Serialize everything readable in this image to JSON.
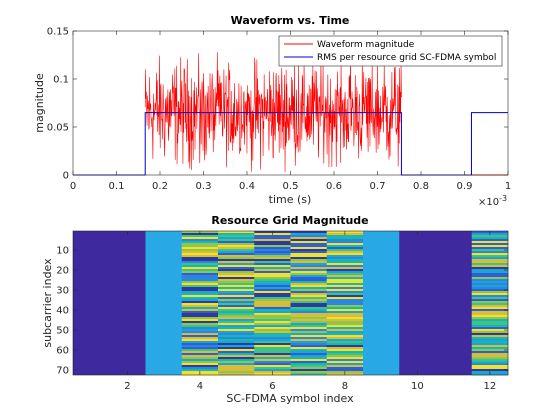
{
  "chart_data": [
    {
      "type": "line",
      "title": "Waveform vs. Time",
      "xlabel": "time (s)",
      "ylabel": "magnitude",
      "x_exponent_label": "×10^-3",
      "xlim": [
        0,
        1
      ],
      "ylim": [
        0,
        0.15
      ],
      "xticks": [
        "0",
        "0.1",
        "0.2",
        "0.3",
        "0.4",
        "0.5",
        "0.6",
        "0.7",
        "0.8",
        "0.9",
        "1"
      ],
      "yticks": [
        "0",
        "0.05",
        "0.1",
        "0.15"
      ],
      "legend_position": "top-right",
      "series": [
        {
          "name": "Waveform magnitude",
          "color": "#ff0000",
          "style": "noisy",
          "segments": [
            {
              "x_start": 0.166,
              "x_end": 0.755,
              "mean": 0.065,
              "min": 0.002,
              "max": 0.128
            }
          ]
        },
        {
          "name": "RMS per resource grid SC-FDMA symbol",
          "color": "#0000cc",
          "style": "step",
          "x": [
            0,
            0.166,
            0.166,
            0.755,
            0.755,
            0.916,
            0.916,
            1.0
          ],
          "y": [
            0,
            0,
            0.065,
            0.065,
            0,
            0,
            0.065,
            0.065
          ]
        }
      ]
    },
    {
      "type": "heatmap",
      "title": "Resource Grid Magnitude",
      "xlabel": "SC-FDMA symbol index",
      "ylabel": "subcarrier index",
      "xlim": [
        0.5,
        12.5
      ],
      "ylim": [
        72.5,
        0.5
      ],
      "xticks": [
        "2",
        "4",
        "6",
        "8",
        "10",
        "12"
      ],
      "yticks": [
        "10",
        "20",
        "30",
        "40",
        "50",
        "60",
        "70"
      ],
      "rows": 72,
      "columns": [
        {
          "symbol": 1,
          "fill": "zero",
          "color": "#3e2a9e"
        },
        {
          "symbol": 2,
          "fill": "zero",
          "color": "#3e2a9e"
        },
        {
          "symbol": 3,
          "fill": "constant",
          "color": "#29a8e6"
        },
        {
          "symbol": 4,
          "fill": "data"
        },
        {
          "symbol": 5,
          "fill": "data"
        },
        {
          "symbol": 6,
          "fill": "data"
        },
        {
          "symbol": 7,
          "fill": "data"
        },
        {
          "symbol": 8,
          "fill": "data"
        },
        {
          "symbol": 9,
          "fill": "constant",
          "color": "#29a8e6"
        },
        {
          "symbol": 10,
          "fill": "zero",
          "color": "#3e2a9e"
        },
        {
          "symbol": 11,
          "fill": "zero",
          "color": "#3e2a9e"
        },
        {
          "symbol": 12,
          "fill": "data"
        }
      ],
      "palette": [
        "#2d3a9e",
        "#2f5fd8",
        "#2a86e0",
        "#1ea3d6",
        "#16b8b6",
        "#3fc28a",
        "#8fc74e",
        "#d6bd3a",
        "#f2e02b"
      ]
    }
  ]
}
